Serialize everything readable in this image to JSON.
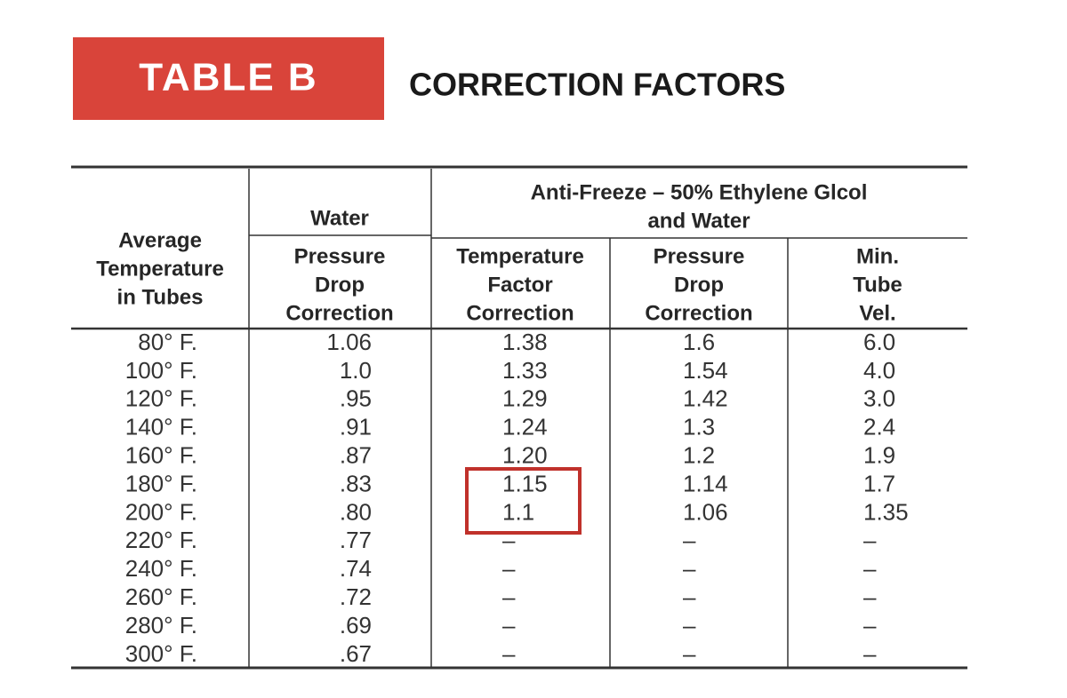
{
  "header": {
    "badge": "TABLE B",
    "title": "CORRECTION FACTORS"
  },
  "table": {
    "group_headers": [
      {
        "lines": [
          "Water"
        ]
      },
      {
        "lines": [
          "Anti-Freeze – 50% Ethylene Glcol",
          "and Water"
        ]
      }
    ],
    "columns": [
      {
        "lines": [
          "Average",
          "Temperature",
          "in Tubes"
        ]
      },
      {
        "lines": [
          "Pressure",
          "Drop",
          "Correction"
        ]
      },
      {
        "lines": [
          "Temperature",
          "Factor",
          "Correction"
        ]
      },
      {
        "lines": [
          "Pressure",
          "Drop",
          "Correction"
        ]
      },
      {
        "lines": [
          "Min.",
          "Tube",
          "Vel."
        ]
      }
    ],
    "rows": [
      [
        "80° F.",
        "1.06",
        "1.38",
        "1.6",
        "6.0"
      ],
      [
        "100° F.",
        "1.0",
        "1.33",
        "1.54",
        "4.0"
      ],
      [
        "120° F.",
        ".95",
        "1.29",
        "1.42",
        "3.0"
      ],
      [
        "140° F.",
        ".91",
        "1.24",
        "1.3",
        "2.4"
      ],
      [
        "160° F.",
        ".87",
        "1.20",
        "1.2",
        "1.9"
      ],
      [
        "180° F.",
        ".83",
        "1.15",
        "1.14",
        "1.7"
      ],
      [
        "200° F.",
        ".80",
        "1.1",
        "1.06",
        "1.35"
      ],
      [
        "220° F.",
        ".77",
        "–",
        "–",
        "–"
      ],
      [
        "240° F.",
        ".74",
        "–",
        "–",
        "–"
      ],
      [
        "260° F.",
        ".72",
        "–",
        "–",
        "–"
      ],
      [
        "280° F.",
        ".69",
        "–",
        "–",
        "–"
      ],
      [
        "300° F.",
        ".67",
        "–",
        "–",
        "–"
      ]
    ]
  }
}
